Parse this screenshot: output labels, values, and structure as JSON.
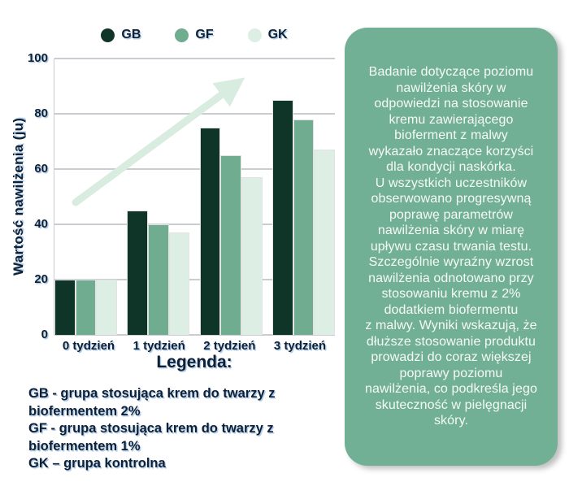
{
  "chart_data": {
    "type": "bar",
    "title": "",
    "categories": [
      "0 tydzień",
      "1 tydzień",
      "2 tydzień",
      "3 tydzień"
    ],
    "series": [
      {
        "name": "GB",
        "color": "#0f3528",
        "values": [
          20,
          45,
          75,
          85
        ]
      },
      {
        "name": "GF",
        "color": "#6fac90",
        "values": [
          20,
          40,
          65,
          78
        ]
      },
      {
        "name": "GK",
        "color": "#ddeee5",
        "values": [
          20,
          37,
          57,
          67
        ]
      }
    ],
    "xlabel": "",
    "ylabel": "Wartość nawilżenia (ju)",
    "yticks": [
      100,
      80,
      60,
      40,
      20,
      0
    ],
    "ylim": [
      0,
      100
    ],
    "grid": true,
    "legend_position": "top",
    "annotations": [
      "upward trend arrow across plot"
    ]
  },
  "legend_block": {
    "heading": "Legenda:",
    "items": [
      "GB - grupa stosująca krem do twarzy z\nbiofermentem 2%",
      "GF - grupa stosująca krem do twarzy z\nbiofermentem 1%",
      "GK – grupa kontrolna"
    ]
  },
  "summary_panel": {
    "text": "Badanie dotyczące poziomu\nnawilżenia skóry w\nodpowiedzi na stosowanie\nkremu zawierającego\nbioferment z malwy\nwykazało znaczące korzyści\ndla kondycji naskórka.\nU wszystkich uczestników\nobserwowano progresywną\npoprawę parametrów\nnawilżenia skóry w miarę\nupływu czasu trwania testu.\nSzczególnie wyraźny wzrost\nnawilżenia odnotowano przy\nstosowaniu kremu z 2%\ndodatkiem biofermentu\nz malwy. Wyniki wskazują, że\ndłuższe stosowanie produktu\nprowadzi do coraz większej\npoprawy poziomu\nnawilżenia, co podkreśla jego\nskuteczność w pielęgnacji\nskóry.",
    "background": "#72b096",
    "text_color": "#f6faf6"
  },
  "colors": {
    "gridline": "#c9cdd1",
    "trend_arrow": "#d8ecdf",
    "chart_text": "#0e2033"
  }
}
